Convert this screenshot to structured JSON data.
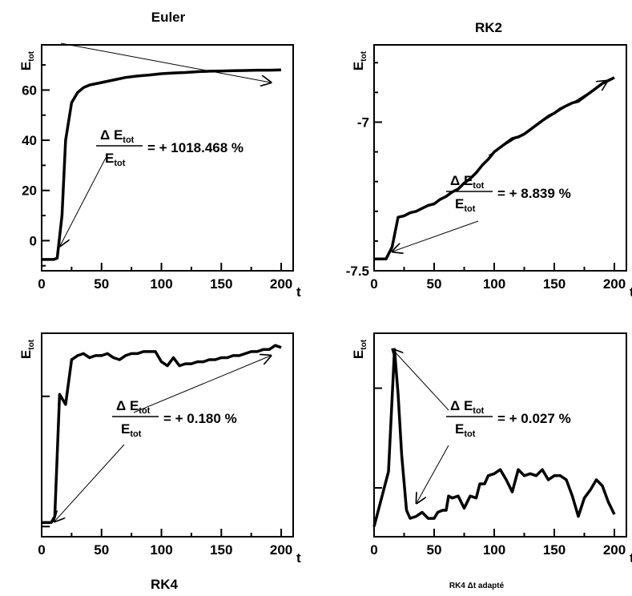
{
  "chart_data": [
    {
      "type": "line",
      "title": "Euler",
      "ylabel": {
        "main": "E",
        "sub": "tot"
      },
      "xlabel": "t",
      "xlim": [
        0,
        210
      ],
      "ylim": [
        -12,
        78
      ],
      "xticks": [
        "0",
        "50",
        "100",
        "150",
        "200"
      ],
      "yticks": [
        {
          "v": 0,
          "label": "0"
        },
        {
          "v": 20,
          "label": "20"
        },
        {
          "v": 40,
          "label": "40"
        },
        {
          "v": 60,
          "label": "60"
        }
      ],
      "annotation": {
        "num_main": "Δ E",
        "num_sub": "tot",
        "den_main": "E",
        "den_sub": "tot",
        "value": "= + 1018.468 %"
      },
      "arrows": [
        [
          76,
          54,
          338,
          103
        ],
        [
          132,
          197,
          75,
          307
        ]
      ],
      "series": [
        {
          "x": [
            0,
            10,
            13,
            17,
            20,
            25,
            30,
            35,
            40,
            50,
            60,
            70,
            80,
            90,
            100,
            110,
            120,
            130,
            140,
            150,
            160,
            170,
            180,
            190,
            200
          ],
          "y": [
            -7.5,
            -7.5,
            -7,
            10,
            40,
            55,
            59,
            61,
            62,
            63,
            64,
            65,
            65.6,
            66,
            66.5,
            66.8,
            67,
            67.3,
            67.5,
            67.6,
            67.7,
            67.8,
            67.9,
            67.9,
            68
          ]
        }
      ]
    },
    {
      "type": "line",
      "title": "RK2",
      "ylabel": {
        "main": "E",
        "sub": "tot"
      },
      "xlabel": "t",
      "xlim": [
        0,
        210
      ],
      "ylim": [
        -7.5,
        -6.74
      ],
      "xticks": [
        "0",
        "50",
        "100",
        "150",
        "200"
      ],
      "yticks": [
        {
          "v": -7.5,
          "label": "-7.5"
        },
        {
          "v": -7.0,
          "label": "-7"
        }
      ],
      "annotation": {
        "num_main": "Δ E",
        "num_sub": "tot",
        "den_main": "E",
        "den_sub": "tot",
        "value": "= + 8.839 %"
      },
      "arrows": [
        [
          610,
          194,
          758,
          101
        ],
        [
          597,
          276,
          490,
          314
        ]
      ],
      "series": [
        {
          "x": [
            0,
            10,
            15,
            20,
            25,
            30,
            35,
            40,
            45,
            50,
            55,
            60,
            65,
            70,
            75,
            80,
            85,
            90,
            95,
            100,
            105,
            110,
            115,
            120,
            125,
            130,
            135,
            140,
            145,
            150,
            155,
            160,
            165,
            170,
            175,
            180,
            185,
            190,
            195,
            200
          ],
          "y": [
            -7.46,
            -7.46,
            -7.42,
            -7.32,
            -7.315,
            -7.305,
            -7.3,
            -7.29,
            -7.28,
            -7.275,
            -7.26,
            -7.25,
            -7.235,
            -7.225,
            -7.205,
            -7.19,
            -7.17,
            -7.145,
            -7.125,
            -7.1,
            -7.085,
            -7.07,
            -7.055,
            -7.05,
            -7.04,
            -7.025,
            -7.01,
            -6.995,
            -6.98,
            -6.97,
            -6.955,
            -6.945,
            -6.935,
            -6.93,
            -6.915,
            -6.9,
            -6.885,
            -6.87,
            -6.86,
            -6.85
          ]
        }
      ]
    },
    {
      "type": "line",
      "title": "RK4",
      "ylabel": {
        "main": "E",
        "sub": "tot"
      },
      "xlabel": "t",
      "xlim": [
        0,
        210
      ],
      "ylim": [
        0,
        100
      ],
      "xticks": [
        "0",
        "50",
        "100",
        "150",
        "200"
      ],
      "yticks": [
        {
          "v": 5,
          "label": ""
        },
        {
          "v": 69,
          "label": ""
        }
      ],
      "annotation": {
        "num_main": "Δ E",
        "num_sub": "tot",
        "den_main": "E",
        "den_sub": "tot",
        "value": "= + 0.180 %"
      },
      "arrows": [
        [
          167,
          515,
          338,
          444
        ],
        [
          155,
          555,
          68,
          651
        ]
      ],
      "series": [
        {
          "x": [
            0,
            8,
            11,
            15,
            20,
            25,
            30,
            35,
            40,
            45,
            50,
            55,
            60,
            65,
            70,
            75,
            80,
            85,
            90,
            95,
            100,
            105,
            110,
            115,
            120,
            125,
            130,
            135,
            140,
            145,
            150,
            155,
            160,
            165,
            170,
            175,
            180,
            185,
            190,
            195,
            200
          ],
          "y": [
            7,
            7,
            10,
            70,
            65,
            87,
            89,
            90,
            88,
            89,
            89,
            90,
            88,
            87,
            89,
            90,
            90,
            91,
            91,
            91,
            86,
            84,
            88,
            84,
            85,
            85,
            86,
            86,
            87,
            87,
            88,
            88,
            89,
            89,
            90,
            91,
            91,
            92,
            92,
            94,
            93
          ]
        }
      ]
    },
    {
      "type": "line",
      "title": "RK4 Δt adapté",
      "ylabel": {
        "main": "E",
        "sub": "tot"
      },
      "xlabel": "t",
      "xlim": [
        0,
        210
      ],
      "ylim": [
        0,
        100
      ],
      "xticks": [
        "0",
        "50",
        "100",
        "150",
        "200"
      ],
      "yticks": [
        {
          "v": 24,
          "label": ""
        },
        {
          "v": 73,
          "label": ""
        }
      ],
      "annotation": {
        "num_main": "Δ E",
        "num_sub": "tot",
        "den_main": "E",
        "den_sub": "tot",
        "value": "= + 0.027 %"
      },
      "arrows": [
        [
          560,
          512,
          490,
          436
        ],
        [
          560,
          556,
          520,
          628
        ]
      ],
      "series": [
        {
          "x": [
            0,
            12,
            17,
            20,
            23,
            27,
            30,
            35,
            40,
            45,
            50,
            53,
            57,
            60,
            62,
            65,
            70,
            75,
            80,
            85,
            88,
            92,
            95,
            100,
            105,
            110,
            115,
            120,
            125,
            130,
            135,
            140,
            145,
            150,
            155,
            160,
            165,
            170,
            175,
            180,
            185,
            190,
            195,
            200
          ],
          "y": [
            5,
            32,
            92,
            70,
            40,
            13,
            9,
            10,
            12,
            9,
            9,
            12,
            13,
            13,
            20,
            19,
            20,
            14,
            20,
            19,
            26,
            26,
            30,
            31,
            33,
            28,
            22,
            33,
            30,
            31,
            30,
            33,
            28,
            30,
            30,
            28,
            20,
            10,
            19,
            23,
            28,
            25,
            17,
            11
          ]
        }
      ]
    }
  ]
}
